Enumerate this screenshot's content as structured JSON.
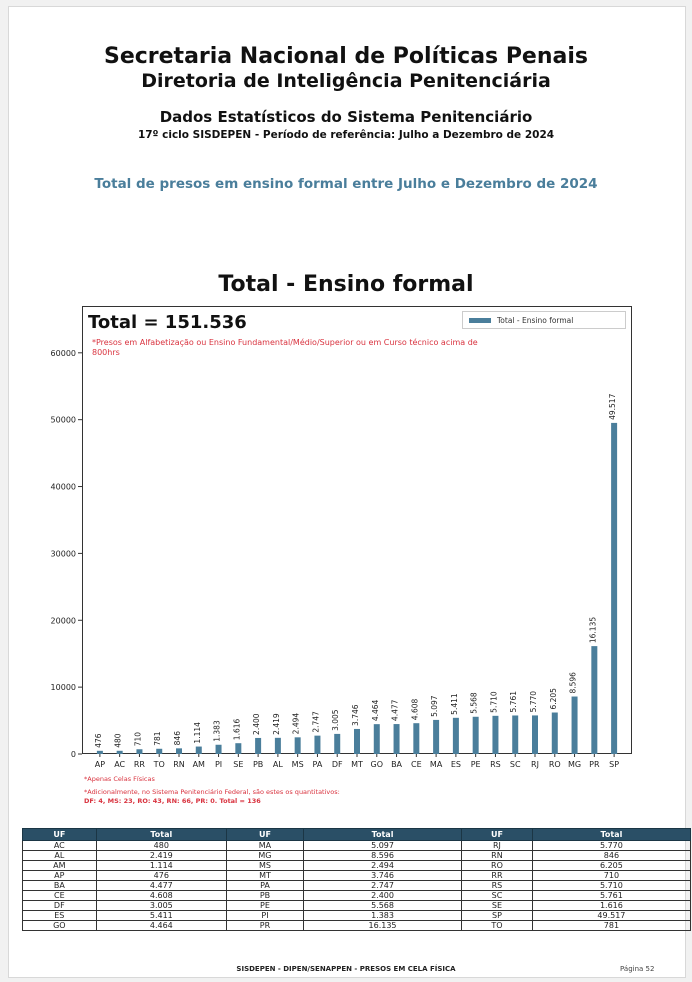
{
  "header": {
    "line1": "Secretaria Nacional de Políticas Penais",
    "line2": "Diretoria de Inteligência Penitenciária",
    "line3": "Dados Estatísticos do Sistema Penitenciário",
    "line4": "17º ciclo SISDEPEN - Período de referência: Julho a Dezembro de 2024",
    "section": "Total de presos em ensino formal entre Julho e Dezembro de 2024"
  },
  "chart_data": {
    "type": "bar",
    "title": "Total - Ensino formal",
    "total_label": "Total = 151.536",
    "note": "*Presos em Alfabetização ou Ensino Fundamental/Médio/Superior ou em Curso técnico acima de 800hrs",
    "legend": [
      "Total - Ensino formal"
    ],
    "legend_position": "top-right",
    "color": "#4a7e9b",
    "ylim": [
      0,
      67000
    ],
    "yticks": [
      0,
      10000,
      20000,
      30000,
      40000,
      50000,
      60000
    ],
    "categories": [
      "AP",
      "AC",
      "RR",
      "TO",
      "RN",
      "AM",
      "PI",
      "SE",
      "PB",
      "AL",
      "MS",
      "PA",
      "DF",
      "MT",
      "GO",
      "BA",
      "CE",
      "MA",
      "ES",
      "PE",
      "RS",
      "SC",
      "RJ",
      "RO",
      "MG",
      "PR",
      "SP"
    ],
    "values": [
      476,
      480,
      710,
      781,
      846,
      1114,
      1383,
      1616,
      2400,
      2419,
      2494,
      2747,
      3005,
      3746,
      4464,
      4477,
      4608,
      5097,
      5411,
      5568,
      5710,
      5761,
      5770,
      6205,
      8596,
      16135,
      49517
    ],
    "labels": [
      "476",
      "480",
      "710",
      "781",
      "846",
      "1.114",
      "1.383",
      "1.616",
      "2.400",
      "2.419",
      "2.494",
      "2.747",
      "3.005",
      "3.746",
      "4.464",
      "4.477",
      "4.608",
      "5.097",
      "5.411",
      "5.568",
      "5.710",
      "5.761",
      "5.770",
      "6.205",
      "8.596",
      "16.135",
      "49.517"
    ]
  },
  "footnotes": {
    "line1": "*Apenas Celas Físicas",
    "line2": "*Adicionalmente, no Sistema Penitenciário Federal, são estes os quantitativos:",
    "line3": "DF: 4, MS: 23, RO: 43, RN: 66, PR: 0. Total = 136"
  },
  "table": {
    "headers": [
      "UF",
      "Total",
      "UF",
      "Total",
      "UF",
      "Total"
    ],
    "rows": [
      [
        "AC",
        "480",
        "MA",
        "5.097",
        "RJ",
        "5.770"
      ],
      [
        "AL",
        "2.419",
        "MG",
        "8.596",
        "RN",
        "846"
      ],
      [
        "AM",
        "1.114",
        "MS",
        "2.494",
        "RO",
        "6.205"
      ],
      [
        "AP",
        "476",
        "MT",
        "3.746",
        "RR",
        "710"
      ],
      [
        "BA",
        "4.477",
        "PA",
        "2.747",
        "RS",
        "5.710"
      ],
      [
        "CE",
        "4.608",
        "PB",
        "2.400",
        "SC",
        "5.761"
      ],
      [
        "DF",
        "3.005",
        "PE",
        "5.568",
        "SE",
        "1.616"
      ],
      [
        "ES",
        "5.411",
        "PI",
        "1.383",
        "SP",
        "49.517"
      ],
      [
        "GO",
        "4.464",
        "PR",
        "16.135",
        "TO",
        "781"
      ]
    ]
  },
  "footer": {
    "text": "SISDEPEN - DIPEN/SENAPPEN - PRESOS EM CELA FÍSICA",
    "page": "Página 52"
  }
}
